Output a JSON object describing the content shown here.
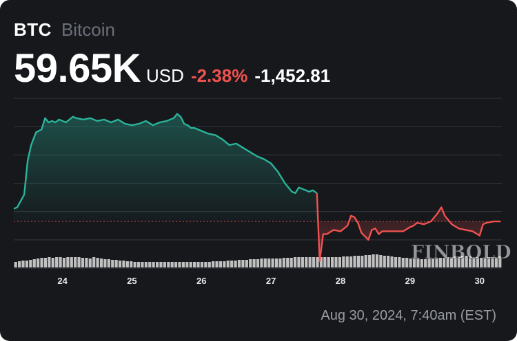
{
  "header": {
    "symbol": "BTC",
    "name": "Bitcoin",
    "price": "59.65K",
    "currency": "USD",
    "change_pct": "-2.38%",
    "change_abs": "-1,452.81",
    "timestamp": "Aug 30, 2024, 7:40am (EST)",
    "watermark": "FINBOLD"
  },
  "colors": {
    "up": "#2bb39a",
    "down": "#f0524f",
    "background": "#16181c",
    "grid": "#33363d",
    "volume": "#d4d4d4",
    "reference_line": "#f0524f"
  },
  "chart_data": {
    "type": "line",
    "x_axis_ticks": [
      "24",
      "25",
      "26",
      "27",
      "28",
      "29",
      "30"
    ],
    "x_unit": "day (Aug 2024)",
    "xlim": [
      23.3,
      30.32
    ],
    "ylim": [
      58000,
      64000
    ],
    "grid": "horizontal",
    "reference_value": 59650,
    "up_segment_end_x": 27.66,
    "series": [
      {
        "role": "price",
        "x": [
          23.3,
          23.35,
          23.45,
          23.5,
          23.55,
          23.62,
          23.7,
          23.75,
          23.8,
          23.85,
          23.9,
          23.95,
          24.0,
          24.05,
          24.1,
          24.15,
          24.2,
          24.3,
          24.4,
          24.5,
          24.6,
          24.7,
          24.8,
          24.9,
          25.0,
          25.1,
          25.2,
          25.3,
          25.4,
          25.5,
          25.6,
          25.65,
          25.7,
          25.75,
          25.8,
          25.85,
          25.9,
          26.0,
          26.1,
          26.2,
          26.3,
          26.4,
          26.5,
          26.6,
          26.7,
          26.8,
          26.9,
          27.0,
          27.1,
          27.2,
          27.3,
          27.35,
          27.4,
          27.45,
          27.5,
          27.55,
          27.6,
          27.66,
          27.7,
          27.75,
          27.8,
          27.9,
          28.0,
          28.1,
          28.15,
          28.2,
          28.25,
          28.3,
          28.4,
          28.45,
          28.5,
          28.55,
          28.6,
          28.7,
          28.8,
          28.9,
          29.0,
          29.05,
          29.1,
          29.2,
          29.3,
          29.4,
          29.45,
          29.5,
          29.6,
          29.7,
          29.8,
          29.9,
          30.0,
          30.05,
          30.1,
          30.2,
          30.3
        ],
        "y": [
          60100,
          60150,
          60600,
          61800,
          62350,
          62800,
          62900,
          63300,
          63150,
          63200,
          63150,
          63250,
          63200,
          63150,
          63250,
          63350,
          63300,
          63250,
          63300,
          63200,
          63250,
          63150,
          63250,
          63100,
          63050,
          63100,
          63200,
          63050,
          63150,
          63200,
          63300,
          63450,
          63350,
          63100,
          63050,
          62950,
          62950,
          62850,
          62750,
          62700,
          62550,
          62350,
          62400,
          62250,
          62100,
          61950,
          61850,
          61700,
          61400,
          61000,
          60700,
          60650,
          60850,
          60800,
          60750,
          60700,
          60750,
          60650,
          58250,
          59200,
          59200,
          59350,
          59300,
          59500,
          59850,
          59800,
          59600,
          59250,
          59000,
          59350,
          59400,
          59200,
          59300,
          59300,
          59300,
          59300,
          59450,
          59500,
          59600,
          59550,
          59650,
          59950,
          60150,
          59850,
          59550,
          59400,
          59350,
          59300,
          59150,
          59550,
          59600,
          59650,
          59650
        ]
      }
    ],
    "volume_bars": [
      8,
      9,
      10,
      10,
      11,
      12,
      13,
      14,
      14,
      15,
      14,
      15,
      15,
      14,
      15,
      15,
      15,
      15,
      14,
      14,
      13,
      15,
      14,
      13,
      12,
      12,
      11,
      11,
      10,
      10,
      9,
      9,
      8,
      8,
      8,
      8,
      8,
      8,
      8,
      8,
      8,
      8,
      8,
      8,
      8,
      8,
      8,
      8,
      8,
      8,
      8,
      8,
      8,
      9,
      9,
      9,
      9,
      10,
      10,
      10,
      11,
      11,
      11,
      12,
      12,
      12,
      13,
      13,
      13,
      13,
      13,
      13,
      14,
      14,
      14,
      15,
      15,
      15,
      15,
      15,
      15,
      15,
      15,
      15,
      15,
      15,
      15,
      15,
      16,
      16,
      16,
      17,
      17,
      17,
      18,
      18,
      19,
      19,
      18,
      17,
      17,
      16,
      15,
      15,
      14,
      14,
      13,
      13,
      13,
      12,
      12,
      13,
      13,
      13,
      14,
      14,
      15,
      15,
      16,
      16,
      17,
      17,
      16,
      15,
      15,
      14,
      14,
      15,
      15,
      15,
      16
    ]
  }
}
